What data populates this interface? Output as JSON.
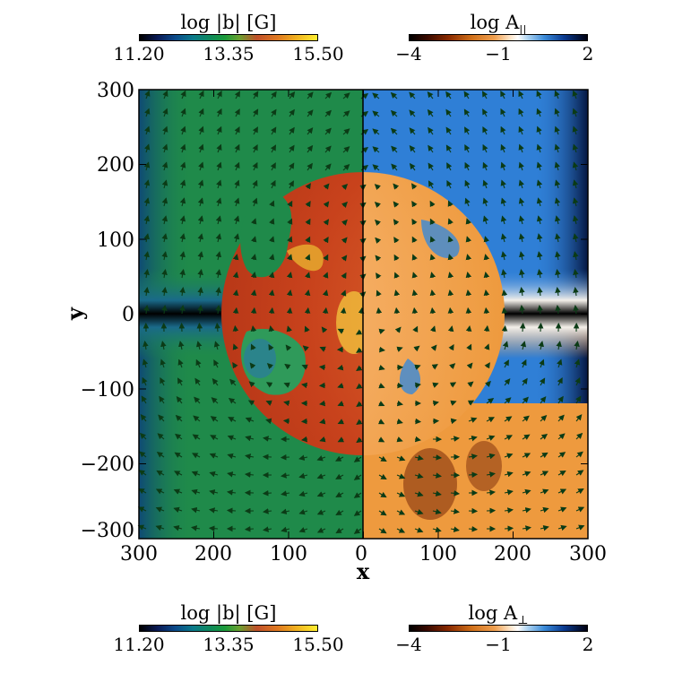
{
  "colorbars": {
    "top_left": {
      "title": "log |b| [G]",
      "ticks": [
        "11.20",
        "13.35",
        "15.50"
      ],
      "scale": "green-red-yellow"
    },
    "top_right": {
      "title": "log A",
      "subscript": "||",
      "ticks": [
        "−4",
        "−1",
        "2"
      ],
      "scale": "brown-white-blue"
    },
    "bottom_left": {
      "title": "log |b| [G]",
      "ticks": [
        "11.20",
        "13.35",
        "15.50"
      ],
      "scale": "green-red-yellow"
    },
    "bottom_right": {
      "title": "log A",
      "subscript": "⊥",
      "ticks": [
        "−4",
        "−1",
        "2"
      ],
      "scale": "brown-white-blue"
    }
  },
  "chart_data": {
    "type": "heatmap",
    "title": "",
    "xlabel": "x",
    "ylabel": "y",
    "x_ticks_left": [
      "300",
      "200",
      "100",
      "0"
    ],
    "x_ticks_right": [
      "0",
      "100",
      "200",
      "300"
    ],
    "y_ticks": [
      "300",
      "200",
      "100",
      "0",
      "−100",
      "−200",
      "−300"
    ],
    "x_range": [
      -300,
      300
    ],
    "y_range": [
      -300,
      300
    ],
    "left_panel": {
      "quantity": "log |b| [G]",
      "range": [
        11.2,
        15.5
      ]
    },
    "right_panel": {
      "quantity": "log A",
      "range": [
        -4,
        2
      ]
    },
    "vector_overlay": true,
    "colors": {
      "ambient_green": "#1f8a4a",
      "core_red": "#c8421c",
      "core_orange": "#f29a3a",
      "ambient_blue": "#2f7fd6",
      "arrow": "#0b3b16"
    }
  }
}
